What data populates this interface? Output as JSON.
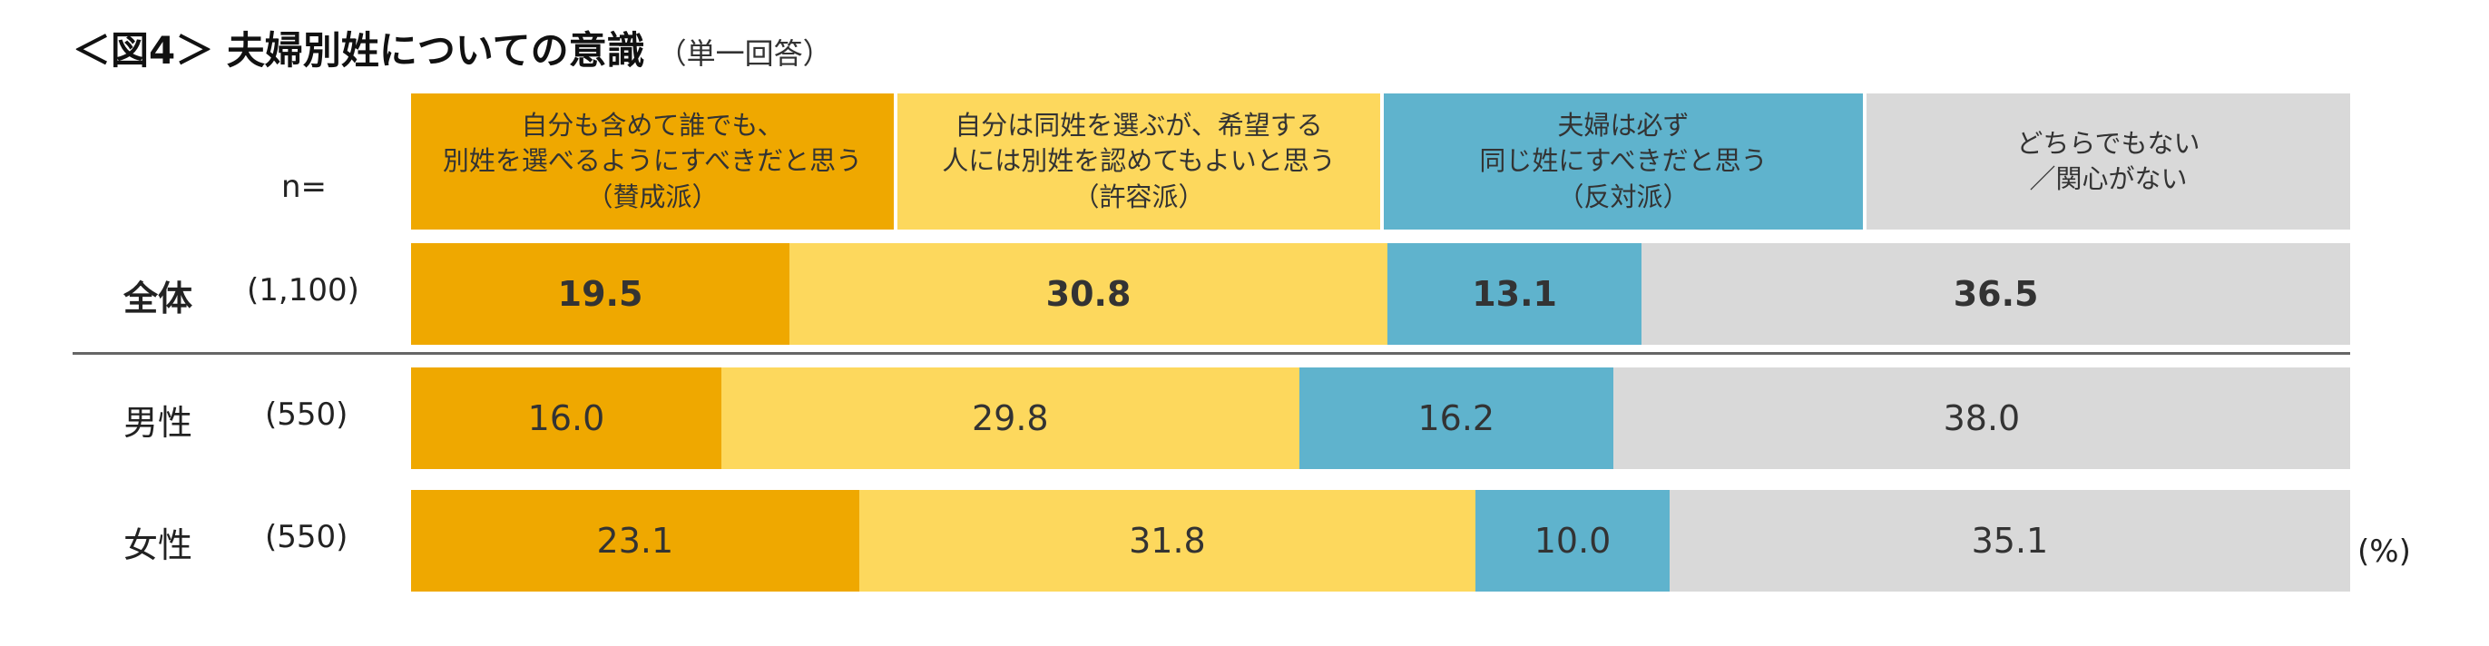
{
  "title": "＜図4＞ 夫婦別姓についての意識",
  "subtitle": "（単一回答）",
  "categories": [
    {
      "lines": [
        "自分も含めて誰でも、",
        "別姓を選べるようにすべきだと思う",
        "（賛成派）"
      ],
      "color": "#EFA800"
    },
    {
      "lines": [
        "自分は同姓を選ぶが、希望する",
        "人には別姓を認めてもよいと思う",
        "（許容派）"
      ],
      "color": "#FDD85D"
    },
    {
      "lines": [
        "夫婦は必ず",
        "同じ姓にすべきだと思う",
        "（反対派）"
      ],
      "color": "#5FB3CD"
    },
    {
      "lines": [
        "どちらでもない",
        "／関心がない"
      ],
      "color": "#D9D9D9"
    }
  ],
  "n_label": "n=",
  "unit_label": "(%)",
  "chart_data": {
    "type": "bar",
    "orientation": "horizontal-stacked-100",
    "categories": [
      "全体",
      "男性",
      "女性"
    ],
    "n": [
      "(1,100)",
      "(550)",
      "(550)"
    ],
    "series": [
      {
        "name": "自分も含めて誰でも、別姓を選べるようにすべきだと思う（賛成派）",
        "values": [
          19.5,
          16.0,
          23.1
        ]
      },
      {
        "name": "自分は同姓を選ぶが、希望する人には別姓を認めてもよいと思う（許容派）",
        "values": [
          30.8,
          29.8,
          31.8
        ]
      },
      {
        "name": "夫婦は必ず同じ姓にすべきだと思う（反対派）",
        "values": [
          13.1,
          16.2,
          10.0
        ]
      },
      {
        "name": "どちらでもない／関心がない",
        "values": [
          36.5,
          38.0,
          35.1
        ]
      }
    ],
    "value_labels": [
      [
        "19.5",
        "30.8",
        "13.1",
        "36.5"
      ],
      [
        "16.0",
        "29.8",
        "16.2",
        "38.0"
      ],
      [
        "23.1",
        "31.8",
        "10.0",
        "35.1"
      ]
    ],
    "xlim": [
      0,
      100
    ],
    "legend": "top"
  }
}
